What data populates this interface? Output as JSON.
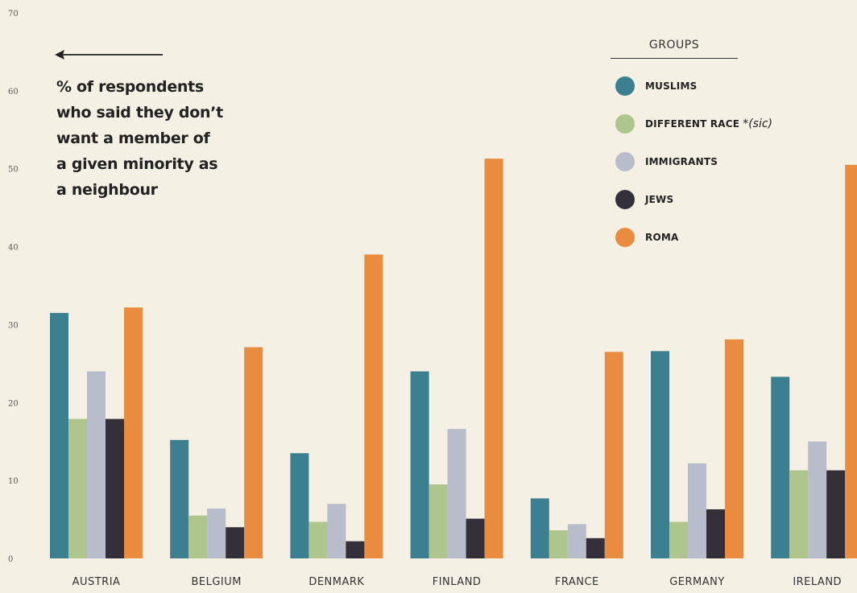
{
  "chart_data": {
    "type": "bar",
    "categories": [
      "AUSTRIA",
      "BELGIUM",
      "DENMARK",
      "FINLAND",
      "FRANCE",
      "GERMANY",
      "IRELAND"
    ],
    "series": [
      {
        "name": "MUSLIMS",
        "color": "#3b7f91",
        "values": [
          31.5,
          15.2,
          13.5,
          24.0,
          7.7,
          26.6,
          23.3
        ]
      },
      {
        "name": "DIFFERENT RACE",
        "color": "#afc58e",
        "values": [
          17.9,
          5.5,
          4.7,
          9.5,
          3.6,
          4.7,
          11.3
        ]
      },
      {
        "name": "IMMIGRANTS",
        "color": "#b8bccb",
        "values": [
          24.0,
          6.4,
          7.0,
          16.6,
          4.4,
          12.2,
          15.0
        ]
      },
      {
        "name": "JEWS",
        "color": "#333039",
        "values": [
          17.9,
          4.0,
          2.2,
          5.1,
          2.6,
          6.3,
          11.3
        ]
      },
      {
        "name": "ROMA",
        "color": "#ea8c3f",
        "values": [
          32.2,
          27.1,
          39.0,
          51.3,
          26.5,
          28.1,
          50.5
        ]
      }
    ],
    "yticks": [
      0,
      10,
      20,
      30,
      40,
      50,
      60,
      70
    ],
    "ylim": [
      0,
      70
    ],
    "grid": false,
    "legend_position": "top-right",
    "legend_title": "GROUPS",
    "legend_note": "*(sic)"
  },
  "annotation": {
    "arrow": "left-arrow",
    "lines": [
      "% of respondents",
      "who said they don’t",
      "want a member of",
      "a given minority as",
      "a neighbour"
    ]
  }
}
